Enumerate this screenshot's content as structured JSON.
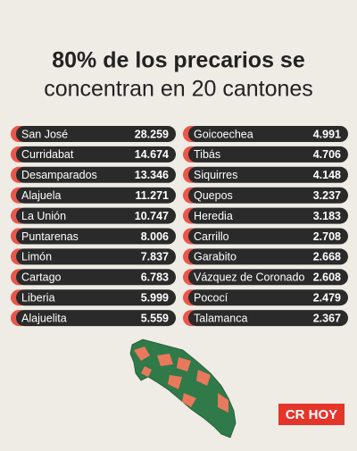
{
  "header": {
    "title_line1": "80% de los precarios se",
    "title_line2": "concentran en 20 cantones"
  },
  "table": {
    "columns": [
      [
        {
          "name": "San José",
          "value": "28.259"
        },
        {
          "name": "Curridabat",
          "value": "14.674"
        },
        {
          "name": "Desamparados",
          "value": "13.346"
        },
        {
          "name": "Alajuela",
          "value": "11.271"
        },
        {
          "name": "La Unión",
          "value": "10.747"
        },
        {
          "name": "Puntarenas",
          "value": "8.006"
        },
        {
          "name": "Limón",
          "value": "7.837"
        },
        {
          "name": "Cartago",
          "value": "6.783"
        },
        {
          "name": "Liberia",
          "value": "5.999"
        },
        {
          "name": "Alajuelita",
          "value": "5.559"
        }
      ],
      [
        {
          "name": "Goicoechea",
          "value": "4.991"
        },
        {
          "name": "Tibás",
          "value": "4.706"
        },
        {
          "name": "Siquirres",
          "value": "4.148"
        },
        {
          "name": "Quepos",
          "value": "3.237"
        },
        {
          "name": "Heredia",
          "value": "3.183"
        },
        {
          "name": "Carrillo",
          "value": "2.708"
        },
        {
          "name": "Garabito",
          "value": "2.668"
        },
        {
          "name": "Vázquez de Coronado",
          "value": "2.608"
        },
        {
          "name": "Pococí",
          "value": "2.479"
        },
        {
          "name": "Talamanca",
          "value": "2.367"
        }
      ]
    ]
  },
  "logo": "CR HOY"
}
